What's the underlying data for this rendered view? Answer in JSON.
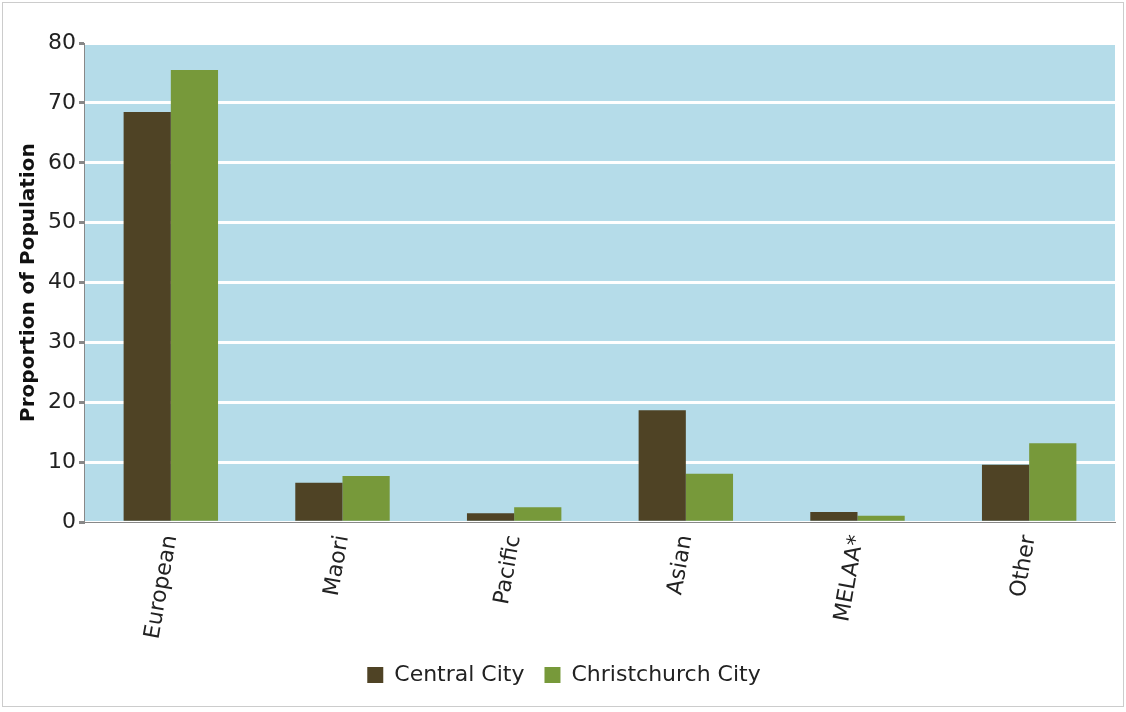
{
  "chart_data": {
    "type": "bar",
    "ylabel": "Proportion of Population",
    "categories": [
      "European",
      "Maori",
      "Pacific",
      "Asian",
      "MELAA*",
      "Other"
    ],
    "series": [
      {
        "name": "Central City",
        "color": "#4f4325",
        "values": [
          68.5,
          6.6,
          1.5,
          18.7,
          1.7,
          9.6
        ]
      },
      {
        "name": "Christchurch City",
        "color": "#77993a",
        "values": [
          75.5,
          7.7,
          2.5,
          8.1,
          1.1,
          13.2
        ]
      }
    ],
    "ylim": [
      0,
      80
    ],
    "yticks": [
      0,
      10,
      20,
      30,
      40,
      50,
      60,
      70,
      80
    ],
    "grid": "y",
    "legend": "bottom"
  }
}
